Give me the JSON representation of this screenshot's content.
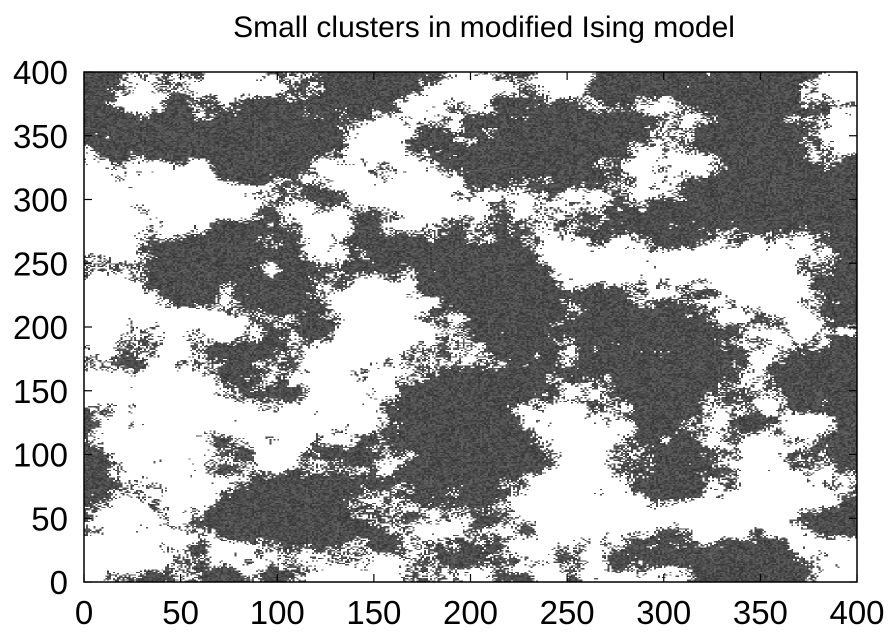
{
  "chart_data": {
    "type": "heatmap",
    "title": "Small clusters in modified Ising model",
    "xlabel": "",
    "ylabel": "",
    "xlim": [
      0,
      400
    ],
    "ylim": [
      0,
      400
    ],
    "xticks": [
      0,
      50,
      100,
      150,
      200,
      250,
      300,
      350,
      400
    ],
    "yticks": [
      0,
      50,
      100,
      150,
      200,
      250,
      300,
      350,
      400
    ],
    "grid": false,
    "legend": "none",
    "colors": {
      "dark": "#4d4d4d",
      "light": "#ffffff",
      "frame": "#000000"
    }
  }
}
